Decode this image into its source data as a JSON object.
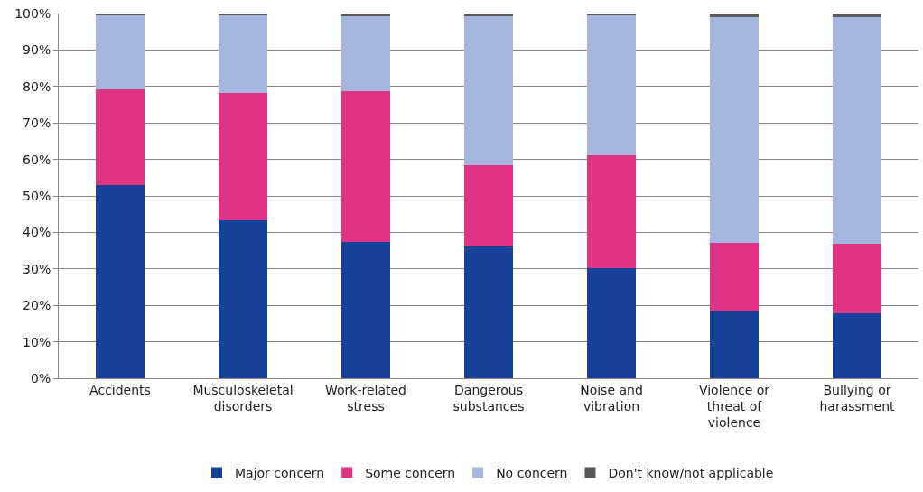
{
  "chart_data": {
    "type": "bar",
    "stacked": true,
    "categories": [
      "Accidents",
      "Musculoskeletal disorders",
      "Work-related stress",
      "Dangerous substances",
      "Noise and vibration",
      "Violence or threat of violence",
      "Bullying or harassment"
    ],
    "series": [
      {
        "name": "Major concern",
        "color": "#17419a",
        "values": [
          53.0,
          43.4,
          37.3,
          36.1,
          30.1,
          18.6,
          17.8
        ]
      },
      {
        "name": "Some concern",
        "color": "#e03383",
        "values": [
          26.3,
          34.9,
          41.5,
          22.2,
          31.1,
          18.5,
          19.1
        ]
      },
      {
        "name": "No concern",
        "color": "#a6b7df",
        "values": [
          20.2,
          21.2,
          20.5,
          41.0,
          38.3,
          61.9,
          62.1
        ]
      },
      {
        "name": "Don't know/not applicable",
        "color": "#595959",
        "values": [
          0.5,
          0.5,
          0.7,
          0.7,
          0.5,
          1.0,
          1.0
        ]
      }
    ],
    "ylim": [
      0,
      100
    ],
    "yticks": [
      {
        "value": 0,
        "label": "0%"
      },
      {
        "value": 10,
        "label": "10%"
      },
      {
        "value": 20,
        "label": "20%"
      },
      {
        "value": 30,
        "label": "30%"
      },
      {
        "value": 40,
        "label": "40%"
      },
      {
        "value": 50,
        "label": "50%"
      },
      {
        "value": 60,
        "label": "60%"
      },
      {
        "value": 70,
        "label": "70%"
      },
      {
        "value": 80,
        "label": "80%"
      },
      {
        "value": 90,
        "label": "90%"
      },
      {
        "value": 100,
        "label": "100%"
      }
    ],
    "grid": "y",
    "legend": "bottom"
  }
}
